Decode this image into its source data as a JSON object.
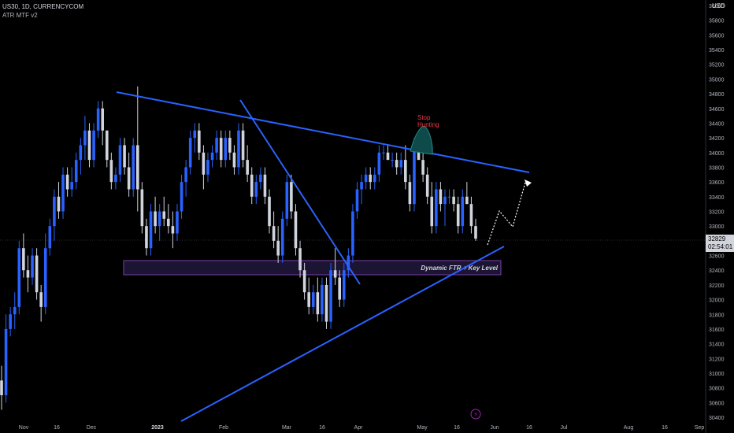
{
  "header": {
    "symbol_line": "US30, 1D, CURRENCYCOM",
    "indicator_line": "ATR MTF v2"
  },
  "axis": {
    "currency": "USD",
    "last_price": "32829",
    "countdown": "02:54:01"
  },
  "annotations": {
    "stop_hunting": "Stop\nHunting",
    "zone_label": "Dynamic FTR + Key Level"
  },
  "colors": {
    "bull": "#2962ff",
    "bear": "#d1d4dc",
    "trendline": "#2962ff",
    "zone_fill": "#1b1433",
    "zone_border": "#7b3fa8",
    "stop_hunt_fill": "#0f4a4a",
    "stop_hunt_text": "#f23645"
  },
  "chart_data": {
    "type": "candlestick",
    "title": "US30, 1D, CURRENCYCOM",
    "ylabel": "USD",
    "ylim": [
      30400,
      36000
    ],
    "y_ticks": [
      30400,
      30600,
      30800,
      31000,
      31200,
      31400,
      31600,
      31800,
      32000,
      32200,
      32400,
      32600,
      32800,
      33000,
      33200,
      33400,
      33600,
      33800,
      34000,
      34200,
      34400,
      34600,
      34800,
      35000,
      35200,
      35400,
      35600,
      35800,
      36000
    ],
    "x_ticks": [
      "Nov",
      "16",
      "Dec",
      "2023",
      "Feb",
      "Mar",
      "16",
      "Apr",
      "May",
      "16",
      "Jun",
      "16",
      "Jul",
      "Aug",
      "16",
      "Sep"
    ],
    "last_price": 32829,
    "series": [
      {
        "ohlc": [
          [
            30900,
            31100,
            30500,
            30700
          ],
          [
            30700,
            31800,
            30600,
            31600
          ],
          [
            31600,
            31900,
            31500,
            31800
          ],
          [
            31800,
            32100,
            31600,
            31900
          ],
          [
            31900,
            32800,
            31800,
            32700
          ],
          [
            32700,
            32900,
            32300,
            32400
          ],
          [
            32400,
            32600,
            32100,
            32300
          ],
          [
            32300,
            32700,
            32200,
            32600
          ],
          [
            32600,
            32700,
            32000,
            32100
          ],
          [
            32100,
            32200,
            31700,
            31900
          ],
          [
            31900,
            32900,
            31800,
            32700
          ],
          [
            32700,
            33100,
            32600,
            33000
          ],
          [
            33000,
            33500,
            32800,
            33400
          ],
          [
            33400,
            33600,
            33100,
            33200
          ],
          [
            33200,
            33800,
            33100,
            33700
          ],
          [
            33700,
            33800,
            33400,
            33500
          ],
          [
            33500,
            33800,
            33400,
            33600
          ],
          [
            33600,
            34000,
            33500,
            33900
          ],
          [
            33900,
            34200,
            33700,
            34100
          ],
          [
            34100,
            34500,
            33900,
            34300
          ],
          [
            34300,
            34400,
            33800,
            33900
          ],
          [
            33900,
            34400,
            33800,
            34300
          ],
          [
            34300,
            34700,
            34200,
            34600
          ],
          [
            34600,
            34700,
            34100,
            34300
          ],
          [
            34300,
            34300,
            33800,
            33900
          ],
          [
            33900,
            34000,
            33500,
            33600
          ],
          [
            33600,
            33800,
            33500,
            33700
          ],
          [
            33700,
            34200,
            33600,
            34100
          ],
          [
            34100,
            34200,
            33700,
            33800
          ],
          [
            33800,
            34000,
            33400,
            33500
          ],
          [
            33500,
            34200,
            33400,
            34100
          ],
          [
            34100,
            34900,
            33200,
            33500
          ],
          [
            33500,
            33600,
            32900,
            33000
          ],
          [
            33000,
            33100,
            32600,
            32700
          ],
          [
            32700,
            33300,
            32600,
            33200
          ],
          [
            33200,
            33400,
            32900,
            33000
          ],
          [
            33000,
            33300,
            32800,
            33200
          ],
          [
            33200,
            33400,
            33000,
            33100
          ],
          [
            33100,
            33300,
            32900,
            33000
          ],
          [
            33000,
            33200,
            32700,
            32900
          ],
          [
            32900,
            33300,
            32800,
            33200
          ],
          [
            33200,
            33700,
            33100,
            33600
          ],
          [
            33600,
            33900,
            33400,
            33800
          ],
          [
            33800,
            34300,
            33700,
            34200
          ],
          [
            34200,
            34400,
            34000,
            34300
          ],
          [
            34300,
            34400,
            33900,
            34000
          ],
          [
            34000,
            34100,
            33500,
            33700
          ],
          [
            33700,
            34000,
            33600,
            33900
          ],
          [
            33900,
            34100,
            33800,
            34000
          ],
          [
            34000,
            34300,
            33900,
            34200
          ],
          [
            34200,
            34300,
            33800,
            33900
          ],
          [
            33900,
            34300,
            33800,
            34200
          ],
          [
            34200,
            34300,
            33900,
            34000
          ],
          [
            34000,
            34100,
            33700,
            33800
          ],
          [
            33800,
            34400,
            33700,
            34300
          ],
          [
            34300,
            34400,
            33800,
            33900
          ],
          [
            33900,
            34100,
            33600,
            33700
          ],
          [
            33700,
            33800,
            33300,
            33400
          ],
          [
            33400,
            33700,
            33300,
            33600
          ],
          [
            33600,
            33800,
            33500,
            33700
          ],
          [
            33700,
            33800,
            33300,
            33400
          ],
          [
            33400,
            33500,
            32900,
            33000
          ],
          [
            33000,
            33200,
            32700,
            32800
          ],
          [
            32800,
            33000,
            32500,
            32600
          ],
          [
            32600,
            33200,
            32500,
            33100
          ],
          [
            33100,
            33700,
            33000,
            33600
          ],
          [
            33600,
            33700,
            33100,
            33200
          ],
          [
            33200,
            33300,
            32600,
            32700
          ],
          [
            32700,
            32800,
            32300,
            32400
          ],
          [
            32400,
            32500,
            32000,
            32100
          ],
          [
            32100,
            32300,
            31800,
            31900
          ],
          [
            31900,
            32200,
            31800,
            32100
          ],
          [
            32100,
            32300,
            31700,
            31800
          ],
          [
            31800,
            32300,
            31700,
            32200
          ],
          [
            32200,
            32300,
            31600,
            31700
          ],
          [
            31700,
            32500,
            31600,
            32400
          ],
          [
            32400,
            32700,
            32200,
            32300
          ],
          [
            32300,
            32400,
            31900,
            32000
          ],
          [
            32000,
            32500,
            31900,
            32400
          ],
          [
            32400,
            32700,
            32300,
            32600
          ],
          [
            32600,
            33300,
            32500,
            33200
          ],
          [
            33200,
            33600,
            33100,
            33500
          ],
          [
            33500,
            33700,
            33300,
            33600
          ],
          [
            33600,
            33800,
            33500,
            33700
          ],
          [
            33700,
            33800,
            33500,
            33600
          ],
          [
            33600,
            33800,
            33500,
            33700
          ],
          [
            33700,
            34100,
            33600,
            34000
          ],
          [
            34000,
            34100,
            33900,
            34000
          ],
          [
            34000,
            34100,
            33900,
            33900
          ],
          [
            33900,
            34000,
            33800,
            33900
          ],
          [
            33900,
            34000,
            33700,
            33800
          ],
          [
            33800,
            34000,
            33700,
            33900
          ],
          [
            33900,
            34100,
            33500,
            33600
          ],
          [
            33600,
            33700,
            33200,
            33300
          ],
          [
            33300,
            34200,
            33200,
            34100
          ],
          [
            34100,
            34200,
            33900,
            33900
          ],
          [
            33900,
            34000,
            33600,
            33700
          ],
          [
            33700,
            33800,
            33300,
            33400
          ],
          [
            33400,
            33600,
            32900,
            33000
          ],
          [
            33000,
            33600,
            32900,
            33500
          ],
          [
            33500,
            33600,
            33200,
            33300
          ],
          [
            33300,
            33500,
            33000,
            33400
          ],
          [
            33400,
            33500,
            33300,
            33400
          ],
          [
            33400,
            33500,
            33200,
            33300
          ],
          [
            33300,
            33400,
            32900,
            33000
          ],
          [
            33000,
            33500,
            32900,
            33400
          ],
          [
            33400,
            33600,
            33300,
            33300
          ],
          [
            33300,
            33400,
            32900,
            33000
          ],
          [
            33000,
            33100,
            32800,
            32829
          ]
        ]
      }
    ]
  }
}
